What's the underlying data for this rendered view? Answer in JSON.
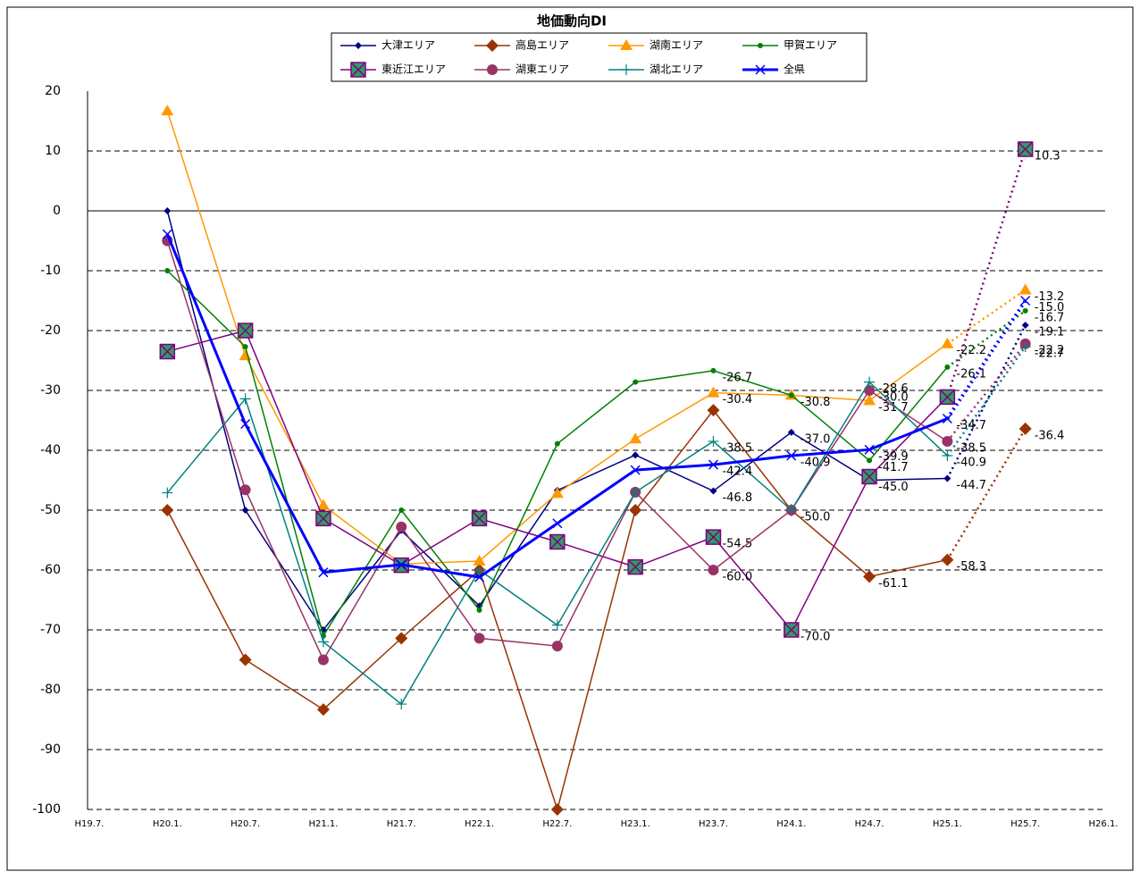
{
  "chart_data": {
    "type": "line",
    "title": "地価動向DI",
    "categories": [
      "H19.7.",
      "H20.1.",
      "H20.7.",
      "H21.1.",
      "H21.7.",
      "H22.1.",
      "H22.7.",
      "H23.1.",
      "H23.7.",
      "H24.1.",
      "H24.7.",
      "H25.1.",
      "H25.7.",
      "H26.1."
    ],
    "ylim": [
      -100,
      20
    ],
    "yticks": [
      -100,
      -90,
      -80,
      -70,
      -60,
      -50,
      -40,
      -30,
      -20,
      -10,
      0,
      10,
      20
    ],
    "grid": true,
    "last_segment_dotted": true,
    "series": [
      {
        "name": "大津エリア",
        "color": "#000080",
        "marker": "diamond",
        "width": 1.5,
        "values": [
          null,
          0,
          -50,
          -70,
          -53.4,
          -66,
          -46.7,
          -40.8,
          -46.8,
          -37.0,
          -45.0,
          -44.7,
          -19.1,
          null
        ],
        "value_labels": [
          null,
          null,
          null,
          null,
          null,
          null,
          null,
          null,
          "-46.8",
          "-37.0",
          "-45.0",
          "-44.7",
          "-19.1",
          null
        ]
      },
      {
        "name": "高島エリア",
        "color": "#993300",
        "marker": "bigdiamond",
        "width": 1.5,
        "values": [
          null,
          -50,
          -75,
          -83.3,
          -71.4,
          -60,
          -100,
          -50,
          -33.3,
          -50.0,
          -61.1,
          -58.3,
          -36.4,
          null
        ],
        "value_labels": [
          null,
          null,
          null,
          null,
          null,
          null,
          null,
          null,
          null,
          "-50.0",
          "-61.1",
          "-58.3",
          "-36.4",
          null
        ]
      },
      {
        "name": "湖南エリア",
        "color": "#ff9900",
        "marker": "triangle",
        "width": 1.5,
        "values": [
          null,
          16.7,
          -24.2,
          -49.2,
          -59.0,
          -58.5,
          -47.2,
          -38.1,
          -30.4,
          -30.8,
          -31.7,
          -22.2,
          -13.2,
          null
        ],
        "value_labels": [
          null,
          null,
          null,
          null,
          null,
          null,
          null,
          null,
          "-30.4",
          null,
          "-31.7",
          "-22.2",
          "-13.2",
          null
        ]
      },
      {
        "name": "甲賀エリア",
        "color": "#008000",
        "marker": "dot",
        "width": 1.5,
        "values": [
          null,
          -10,
          -22.7,
          -71.0,
          -50,
          -66.7,
          -38.9,
          -28.6,
          -26.7,
          -30.8,
          -41.7,
          -26.1,
          -16.7,
          null
        ],
        "value_labels": [
          null,
          null,
          null,
          null,
          null,
          null,
          null,
          null,
          "-26.7",
          "-30.8",
          "-41.7",
          "-26.1",
          "-16.7",
          null
        ]
      },
      {
        "name": "東近江エリア",
        "color": "#800080",
        "marker": "squarex",
        "width": 1.5,
        "values": [
          null,
          -23.5,
          -20,
          -51.4,
          -59.2,
          -51.4,
          -55.3,
          -59.5,
          -54.5,
          -70.0,
          -44.4,
          -31.1,
          10.3,
          null
        ],
        "value_labels": [
          null,
          null,
          null,
          null,
          null,
          null,
          null,
          null,
          "-54.5",
          "-70.0",
          null,
          null,
          "10.3",
          null
        ]
      },
      {
        "name": "湖東エリア",
        "color": "#993366",
        "marker": "circle",
        "width": 1.5,
        "values": [
          null,
          -5,
          -46.6,
          -75,
          -52.8,
          -71.4,
          -72.7,
          -47.0,
          -60.0,
          -50,
          -30.0,
          -38.5,
          -22.2,
          null
        ],
        "value_labels": [
          null,
          null,
          null,
          null,
          null,
          null,
          null,
          null,
          "-60.0",
          null,
          "-30.0",
          "-38.5",
          "-22.2",
          null
        ]
      },
      {
        "name": "湖北エリア",
        "color": "#008080",
        "marker": "plus",
        "width": 1.5,
        "values": [
          null,
          -47.1,
          -31.4,
          -72.0,
          -82.4,
          -60,
          -69.2,
          -47.0,
          -38.5,
          -50,
          -28.6,
          -40.9,
          -22.7,
          null
        ],
        "value_labels": [
          null,
          null,
          null,
          null,
          null,
          null,
          null,
          null,
          "-38.5",
          null,
          "-28.6",
          "-40.9",
          "-22.7",
          null
        ]
      },
      {
        "name": "全県",
        "color": "#0000ff",
        "marker": "x",
        "width": 3,
        "values": [
          null,
          -3.9,
          -35.6,
          -60.4,
          -59.1,
          -61.2,
          -52.2,
          -43.3,
          -42.4,
          -40.9,
          -39.9,
          -34.7,
          -15.0,
          null
        ],
        "value_labels": [
          null,
          null,
          null,
          null,
          null,
          null,
          null,
          null,
          "-42.4",
          "-40.9",
          "-39.9",
          "-34.7",
          "-15.0",
          null
        ]
      }
    ]
  }
}
